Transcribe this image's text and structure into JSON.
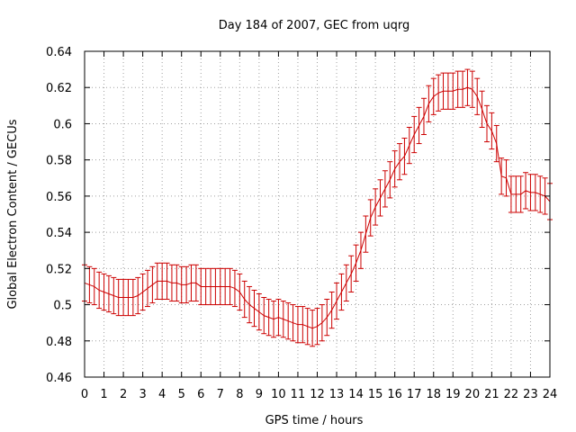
{
  "chart_data": {
    "type": "line",
    "title": "Day 184 of 2007, GEC from uqrg",
    "xlabel": "GPS time / hours",
    "ylabel": "Global Electron Content / GECUs",
    "xlim": [
      0,
      24
    ],
    "ylim": [
      0.46,
      0.64
    ],
    "x_ticks": [
      "0",
      "1",
      "2",
      "3",
      "4",
      "5",
      "6",
      "7",
      "8",
      "9",
      "10",
      "11",
      "12",
      "13",
      "14",
      "15",
      "16",
      "17",
      "18",
      "19",
      "20",
      "21",
      "22",
      "23",
      "24"
    ],
    "y_ticks": [
      "0.46",
      "0.48",
      "0.5",
      "0.52",
      "0.54",
      "0.56",
      "0.58",
      "0.6",
      "0.62",
      "0.64"
    ],
    "grid": true,
    "series_color": "#cc0000",
    "error_bar_halfwidth": 0.01,
    "series": [
      {
        "x": [
          0,
          0.25,
          0.5,
          0.75,
          1,
          1.25,
          1.5,
          1.75,
          2,
          2.25,
          2.5,
          2.75,
          3,
          3.25,
          3.5,
          3.75,
          4,
          4.25,
          4.5,
          4.75,
          5,
          5.25,
          5.5,
          5.75,
          6,
          6.25,
          6.5,
          6.75,
          7,
          7.25,
          7.5,
          7.75,
          8,
          8.25,
          8.5,
          8.75,
          9,
          9.25,
          9.5,
          9.75,
          10,
          10.25,
          10.5,
          10.75,
          11,
          11.25,
          11.5,
          11.75,
          12,
          12.25,
          12.5,
          12.75,
          13,
          13.25,
          13.5,
          13.75,
          14,
          14.25,
          14.5,
          14.75,
          15,
          15.25,
          15.5,
          15.75,
          16,
          16.25,
          16.5,
          16.75,
          17,
          17.25,
          17.5,
          17.75,
          18,
          18.25,
          18.5,
          18.75,
          19,
          19.25,
          19.5,
          19.75,
          20,
          20.25,
          20.5,
          20.75,
          21,
          21.25,
          21.5,
          21.75,
          22,
          22.25,
          22.5,
          22.75,
          23,
          23.25,
          23.5,
          23.75,
          24
        ],
        "y": [
          0.512,
          0.511,
          0.51,
          0.508,
          0.507,
          0.506,
          0.505,
          0.504,
          0.504,
          0.504,
          0.504,
          0.505,
          0.507,
          0.509,
          0.511,
          0.513,
          0.513,
          0.513,
          0.512,
          0.512,
          0.511,
          0.511,
          0.512,
          0.512,
          0.51,
          0.51,
          0.51,
          0.51,
          0.51,
          0.51,
          0.51,
          0.509,
          0.507,
          0.503,
          0.5,
          0.498,
          0.496,
          0.494,
          0.493,
          0.492,
          0.493,
          0.492,
          0.491,
          0.49,
          0.489,
          0.489,
          0.488,
          0.487,
          0.488,
          0.49,
          0.493,
          0.497,
          0.502,
          0.507,
          0.512,
          0.517,
          0.523,
          0.53,
          0.539,
          0.548,
          0.554,
          0.559,
          0.564,
          0.569,
          0.575,
          0.579,
          0.582,
          0.588,
          0.594,
          0.599,
          0.604,
          0.611,
          0.615,
          0.617,
          0.618,
          0.618,
          0.618,
          0.619,
          0.619,
          0.62,
          0.619,
          0.615,
          0.608,
          0.6,
          0.596,
          0.589,
          0.571,
          0.57,
          0.561,
          0.561,
          0.561,
          0.563,
          0.562,
          0.562,
          0.561,
          0.56,
          0.557
        ]
      }
    ]
  }
}
